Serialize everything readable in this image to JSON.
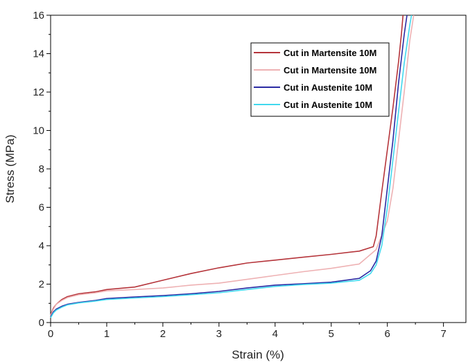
{
  "chart_data": {
    "type": "line",
    "title": "",
    "xlabel": "Strain (%)",
    "ylabel": "Stress (MPa)",
    "xlim": [
      0,
      7.4
    ],
    "ylim": [
      0,
      16
    ],
    "x_ticks": [
      0,
      1,
      2,
      3,
      4,
      5,
      6,
      7
    ],
    "y_ticks": [
      0,
      2,
      4,
      6,
      8,
      10,
      12,
      14,
      16
    ],
    "grid": false,
    "legend_position": "top-right",
    "series": [
      {
        "name": "Cut in Martensite 10M",
        "color": "#b5343a",
        "x": [
          0,
          0.05,
          0.1,
          0.2,
          0.3,
          0.5,
          0.8,
          1.0,
          1.5,
          2.0,
          2.5,
          3.0,
          3.5,
          4.0,
          4.5,
          5.0,
          5.5,
          5.75,
          5.8,
          5.9,
          6.0,
          6.1,
          6.2,
          6.25,
          6.28
        ],
        "y": [
          0.4,
          0.75,
          0.95,
          1.2,
          1.35,
          1.5,
          1.6,
          1.72,
          1.85,
          2.2,
          2.55,
          2.85,
          3.1,
          3.25,
          3.4,
          3.55,
          3.72,
          3.95,
          4.5,
          6.8,
          9.0,
          11.2,
          13.6,
          15.0,
          16.0
        ]
      },
      {
        "name": "Cut in Martensite 10M",
        "color": "#eeb1b3",
        "x": [
          0,
          0.05,
          0.1,
          0.2,
          0.3,
          0.5,
          0.8,
          1.0,
          1.5,
          2.0,
          2.5,
          3.0,
          3.5,
          4.0,
          4.5,
          5.0,
          5.5,
          5.8,
          6.0,
          6.1,
          6.2,
          6.3,
          6.4,
          6.47
        ],
        "y": [
          0.35,
          0.7,
          0.95,
          1.15,
          1.3,
          1.45,
          1.55,
          1.65,
          1.72,
          1.8,
          1.95,
          2.05,
          2.25,
          2.45,
          2.65,
          2.82,
          3.05,
          3.8,
          5.3,
          7.0,
          9.5,
          12.0,
          14.7,
          16.0
        ]
      },
      {
        "name": "Cut in Austenite 10M",
        "color": "#2a2aa3",
        "x": [
          0,
          0.05,
          0.1,
          0.2,
          0.3,
          0.5,
          0.8,
          1.0,
          1.5,
          2.0,
          2.5,
          3.0,
          3.5,
          4.0,
          4.5,
          5.0,
          5.5,
          5.7,
          5.8,
          5.9,
          6.0,
          6.1,
          6.2,
          6.3,
          6.35
        ],
        "y": [
          0.3,
          0.55,
          0.7,
          0.85,
          0.95,
          1.05,
          1.15,
          1.25,
          1.33,
          1.4,
          1.5,
          1.62,
          1.8,
          1.95,
          2.02,
          2.1,
          2.3,
          2.7,
          3.2,
          4.5,
          7.0,
          9.5,
          12.5,
          15.0,
          16.0
        ]
      },
      {
        "name": "Cut in Austenite 10M",
        "color": "#40d8ee",
        "x": [
          0,
          0.05,
          0.1,
          0.2,
          0.3,
          0.5,
          0.8,
          1.0,
          1.5,
          2.0,
          2.5,
          3.0,
          3.5,
          4.0,
          4.5,
          5.0,
          5.5,
          5.7,
          5.8,
          5.9,
          6.0,
          6.1,
          6.2,
          6.3,
          6.4,
          6.43
        ],
        "y": [
          0.25,
          0.5,
          0.65,
          0.8,
          0.92,
          1.02,
          1.12,
          1.2,
          1.28,
          1.35,
          1.45,
          1.55,
          1.72,
          1.88,
          1.98,
          2.05,
          2.2,
          2.55,
          3.0,
          4.0,
          6.0,
          8.5,
          11.0,
          13.5,
          15.5,
          16.0
        ]
      }
    ]
  }
}
